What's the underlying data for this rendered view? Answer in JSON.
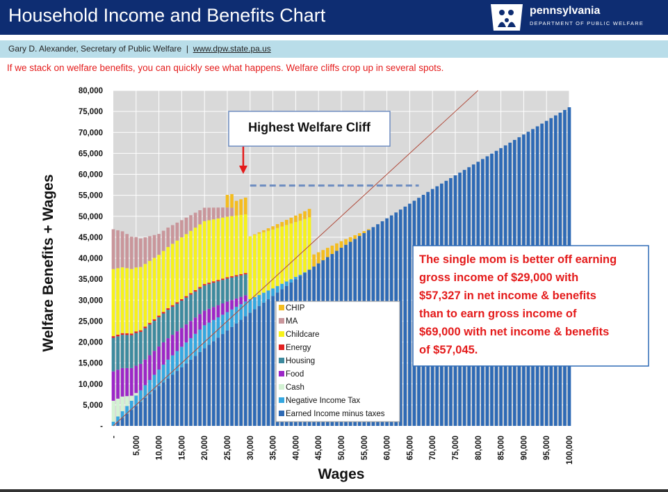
{
  "header": {
    "title": "Household Income and Benefits Chart",
    "logo_word": "pennsylvania",
    "logo_dept": "DEPARTMENT OF PUBLIC WELFARE",
    "logo_icon": "keystone-family-icon"
  },
  "subheader": {
    "author": "Gary D. Alexander,  Secretary of Public Welfare",
    "separator": "|",
    "link": "www.dpw.state.pa.us"
  },
  "note": "If we stack on welfare benefits, you can quickly see what happens. Welfare cliffs crop up in several spots.",
  "chart_data": {
    "type": "bar",
    "stacked": true,
    "xlabel": "Wages",
    "ylabel": "Welfare Benefits + Wages",
    "ylim": [
      0,
      80000
    ],
    "xlim": [
      0,
      100000
    ],
    "yticks": [
      "-",
      "5,000",
      "10,000",
      "15,000",
      "20,000",
      "25,000",
      "30,000",
      "35,000",
      "40,000",
      "45,000",
      "50,000",
      "55,000",
      "60,000",
      "65,000",
      "70,000",
      "75,000",
      "80,000"
    ],
    "xticks": [
      "-",
      "5,000",
      "10,000",
      "15,000",
      "20,000",
      "25,000",
      "30,000",
      "35,000",
      "40,000",
      "45,000",
      "50,000",
      "55,000",
      "60,000",
      "65,000",
      "70,000",
      "75,000",
      "80,000",
      "85,000",
      "90,000",
      "95,000",
      "100,000"
    ],
    "legend_position": "center",
    "grid": true,
    "legend": [
      "CHIP",
      "MA",
      "Childcare",
      "Energy",
      "Housing",
      "Food",
      "Cash",
      "Negative Income Tax",
      "Earned Income minus taxes"
    ],
    "colors": {
      "Earned Income minus taxes": "#2e6ab5",
      "Negative Income Tax": "#35a7e0",
      "Cash": "#d3f2d3",
      "Food": "#9c27c7",
      "Housing": "#3e8a9e",
      "Energy": "#e32222",
      "Childcare": "#f7f21a",
      "MA": "#c9969b",
      "CHIP": "#f4bd1f",
      "plot_bg": "#d9d9d9",
      "grid": "#ffffff",
      "diagonal": "#b04a3a",
      "annotation": "#e41b1b",
      "dashed": "#6d8cc0"
    },
    "series_points": {
      "Earned Income minus taxes": {
        "x": [
          0,
          10000,
          20000,
          30000,
          40000,
          50000,
          60000,
          70000,
          80000,
          90000,
          100000
        ],
        "y": [
          0,
          9500,
          18500,
          27000,
          35000,
          42500,
          49500,
          56500,
          63000,
          69500,
          76000
        ]
      },
      "Negative Income Tax": {
        "x": [
          0,
          5000,
          12000,
          20000,
          29000,
          35000,
          41000,
          43000
        ],
        "y": [
          1000,
          2500,
          4500,
          5500,
          3500,
          1800,
          300,
          0
        ]
      },
      "Cash": {
        "x": [
          0,
          2000,
          4000,
          6000
        ],
        "y": [
          5000,
          3500,
          1200,
          0
        ]
      },
      "Food": {
        "x": [
          0,
          5000,
          10000,
          15000,
          20000,
          25000,
          29000,
          30000
        ],
        "y": [
          7000,
          6500,
          5500,
          4500,
          3500,
          2500,
          1500,
          0
        ]
      },
      "Housing": {
        "x": [
          0,
          5000,
          10000,
          15000,
          20000,
          25000,
          29000,
          30000
        ],
        "y": [
          8000,
          7800,
          7000,
          6500,
          6000,
          5500,
          5000,
          0
        ]
      },
      "Energy": {
        "x": [
          0,
          29000,
          30000
        ],
        "y": [
          400,
          300,
          0
        ]
      },
      "Childcare": {
        "x": [
          0,
          10000,
          20000,
          29000,
          30000,
          43000,
          44000
        ],
        "y": [
          16000,
          14500,
          15000,
          14000,
          15000,
          12500,
          0
        ]
      },
      "MA": {
        "x": [
          0,
          10000,
          20000,
          26000,
          27000
        ],
        "y": [
          9500,
          5000,
          3200,
          2000,
          0
        ]
      },
      "CHIP": {
        "x": [
          25000,
          29000,
          30000,
          43000,
          43500,
          57000,
          58000
        ],
        "y": [
          3000,
          4000,
          0,
          2000,
          3000,
          0,
          0
        ]
      }
    },
    "annotations": {
      "callout": "Highest Welfare Cliff",
      "box_text": "The single mom is better off earning gross income of $29,000 with $57,327 in net income & benefits than to earn gross income of $69,000 with net income & benefits of $57,045.",
      "cliff_level": 57327
    }
  }
}
